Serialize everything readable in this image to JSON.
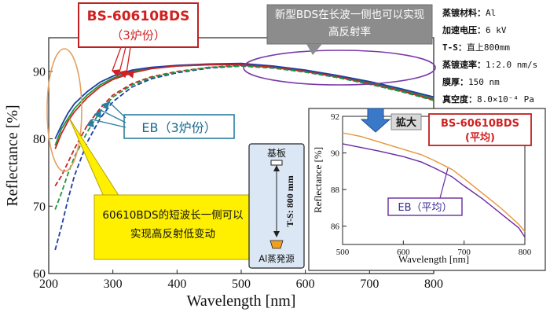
{
  "chart_data": [
    {
      "type": "line",
      "xlabel": "Wavelength [nm]",
      "ylabel": "Reflectance [%]",
      "xlim": [
        200,
        800
      ],
      "ylim": [
        60,
        95
      ],
      "xticks": [
        200,
        300,
        400,
        500,
        600,
        700,
        800
      ],
      "yticks": [
        60,
        70,
        80,
        90
      ],
      "grid": false,
      "series": [
        {
          "name": "BS-60610BDS",
          "color": "#1a9a3a",
          "style": "solid",
          "x": [
            210,
            220,
            230,
            240,
            260,
            280,
            300,
            330,
            360,
            400,
            450,
            500,
            550,
            600,
            650,
            700,
            750,
            800
          ],
          "y": [
            79,
            81.5,
            83,
            84.5,
            86.5,
            88,
            89,
            90,
            90.5,
            90.8,
            91,
            91.1,
            90.7,
            90.1,
            89.3,
            88.3,
            87.3,
            86
          ]
        },
        {
          "name": "BS-60610BDS",
          "color": "#1f3fa8",
          "style": "solid",
          "x": [
            210,
            220,
            230,
            240,
            260,
            280,
            300,
            330,
            360,
            400,
            450,
            500,
            550,
            600,
            650,
            700,
            750,
            800
          ],
          "y": [
            80,
            82,
            83.8,
            85.2,
            87,
            88.4,
            89.3,
            90.2,
            90.6,
            90.9,
            91.1,
            91.2,
            90.8,
            90.2,
            89.4,
            88.5,
            87.4,
            86.2
          ]
        },
        {
          "name": "BS-60610BDS",
          "color": "#cc2222",
          "style": "solid",
          "x": [
            210,
            220,
            230,
            240,
            260,
            280,
            300,
            330,
            360,
            400,
            450,
            500,
            550,
            600,
            650,
            700,
            750,
            800
          ],
          "y": [
            78.5,
            80.8,
            82.6,
            84,
            86.1,
            87.7,
            88.8,
            89.8,
            90.4,
            90.8,
            91,
            91,
            90.6,
            90,
            89.2,
            88.2,
            87.1,
            85.8
          ]
        },
        {
          "name": "EB",
          "color": "#cc2222",
          "style": "dashed",
          "x": [
            210,
            220,
            230,
            240,
            260,
            280,
            300,
            330,
            360,
            400,
            450,
            500,
            550,
            600,
            650,
            700,
            750,
            800
          ],
          "y": [
            73,
            74.5,
            76.5,
            78.5,
            82,
            84.5,
            86.5,
            88.2,
            89.2,
            90,
            90.6,
            90.9,
            90.6,
            90,
            89.2,
            88.2,
            87.1,
            85.8
          ]
        },
        {
          "name": "EB",
          "color": "#1f3fa8",
          "style": "dashed",
          "x": [
            210,
            220,
            230,
            240,
            260,
            280,
            300,
            330,
            360,
            400,
            450,
            500,
            550,
            600,
            650,
            700,
            750,
            800
          ],
          "y": [
            63.5,
            67,
            71,
            74.5,
            79.5,
            83,
            85.5,
            87.7,
            88.9,
            89.8,
            90.5,
            90.8,
            90.5,
            89.9,
            89.1,
            88.1,
            87,
            85.7
          ]
        },
        {
          "name": "EB",
          "color": "#1a9a3a",
          "style": "dashed",
          "x": [
            210,
            220,
            230,
            240,
            260,
            280,
            300,
            330,
            360,
            400,
            450,
            500,
            550,
            600,
            650,
            700,
            750,
            800
          ],
          "y": [
            69.5,
            72,
            74.8,
            77.3,
            81,
            84,
            86.2,
            88,
            89.1,
            89.9,
            90.6,
            90.8,
            90.5,
            89.9,
            89.1,
            88.1,
            87,
            85.7
          ]
        }
      ]
    },
    {
      "type": "line",
      "xlabel": "Wavelength [nm]",
      "ylabel": "Reflectance [%]",
      "xlim": [
        500,
        800
      ],
      "ylim": [
        85,
        92
      ],
      "xticks": [
        500,
        600,
        700,
        800
      ],
      "yticks": [
        86,
        88,
        90,
        92
      ],
      "series": [
        {
          "name": "BS-60610BDS (平均)",
          "color": "#e8943a",
          "x": [
            500,
            530,
            560,
            600,
            630,
            650,
            680,
            700,
            730,
            760,
            790,
            800
          ],
          "y": [
            91.1,
            90.9,
            90.6,
            90.2,
            89.9,
            89.6,
            89.1,
            88.6,
            87.8,
            87,
            86.1,
            85.7
          ]
        },
        {
          "name": "EB (平均)",
          "color": "#6a2aa0",
          "x": [
            500,
            530,
            560,
            600,
            630,
            650,
            680,
            700,
            730,
            760,
            790,
            800
          ],
          "y": [
            90.5,
            90.3,
            90.1,
            89.8,
            89.5,
            89.2,
            88.7,
            88.2,
            87.5,
            86.7,
            85.9,
            85.4
          ]
        }
      ]
    }
  ],
  "labels": {
    "bs_title": "BS-60610BDS",
    "bs_sub": "（3炉份）",
    "eb_label": "EB（3炉份）",
    "long_wave_note": "新型BDS在长波一侧也可以实现高反射率",
    "short_wave_note": "60610BDS的短波长一侧可以实现高反射低变动",
    "inset_tag": "拡大",
    "inset_bs_line1": "BS-60610BDS",
    "inset_bs_line2": "(平均)",
    "inset_eb": "EB（平均）",
    "substrate": "基板",
    "distance": "T-S: 800 mm",
    "source": "Al蒸発源"
  },
  "conditions": [
    {
      "label": "蒸镀材料：",
      "value": "Al"
    },
    {
      "label": "加速电压：",
      "value": "6 kV"
    },
    {
      "label": "T-S：",
      "value": "直上800mm"
    },
    {
      "label": "蒸镀速率：",
      "value": "1:2.0 nm/s"
    },
    {
      "label": "膜厚：",
      "value": "150 nm"
    },
    {
      "label": "真空度：",
      "value": "8.0×10⁻⁴ Pa"
    }
  ]
}
